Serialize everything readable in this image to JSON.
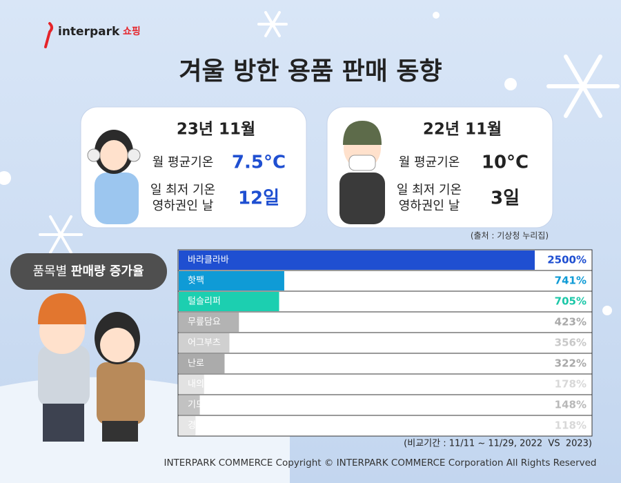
{
  "header": {
    "logo": "interpark",
    "logo_suffix": "쇼핑",
    "title": "겨울 방한 용품 판매 동향"
  },
  "cards": [
    {
      "heading": "23년 11월",
      "avg_label": "월 평균기온",
      "avg_value": "7.5°C",
      "days_label": [
        "일 최저 기온",
        "영하권인 날"
      ],
      "days_value": "12일"
    },
    {
      "heading": "22년 11월",
      "avg_label": "월 평균기온",
      "avg_value": "10°C",
      "days_label": [
        "일 최저 기온",
        "영하권인 날"
      ],
      "days_value": "3일"
    }
  ],
  "source": "(출처 : 기상청 누리집)",
  "chart_data": {
    "type": "bar",
    "orientation": "horizontal",
    "title": "품목별",
    "title_emphasis": "판매량 증가율",
    "categories": [
      "바라클라바",
      "핫팩",
      "털슬리퍼",
      "무릎담요",
      "어그부츠",
      "난로",
      "내의",
      "기모제품",
      "경량패딩"
    ],
    "values": [
      2500,
      741,
      705,
      423,
      356,
      322,
      178,
      148,
      118
    ],
    "value_labels": [
      "2500%",
      "741%",
      "705%",
      "423%",
      "356%",
      "322%",
      "178%",
      "148%",
      "118%"
    ],
    "colors": [
      "#1f4fd1",
      "#0f9bd6",
      "#1ccfb0",
      "#b3b3b3",
      "#d0d0d0",
      "#ababab",
      "#e2e2e2",
      "#c2c2c2",
      "#e6e6e6"
    ],
    "label_colors": [
      "#1f4fd1",
      "#0f9bd6",
      "#1bc7a8",
      "#a9a9a9",
      "#c8c8c8",
      "#a9a9a9",
      "#d8d8d8",
      "#b8b8b8",
      "#d8d8d8"
    ],
    "note": "(비교기간 : 11/11 ~ 11/29, 2022  VS  2023)"
  },
  "footer": "INTERPARK COMMERCE Copyright © INTERPARK COMMERCE Corporation All Rights Reserved"
}
